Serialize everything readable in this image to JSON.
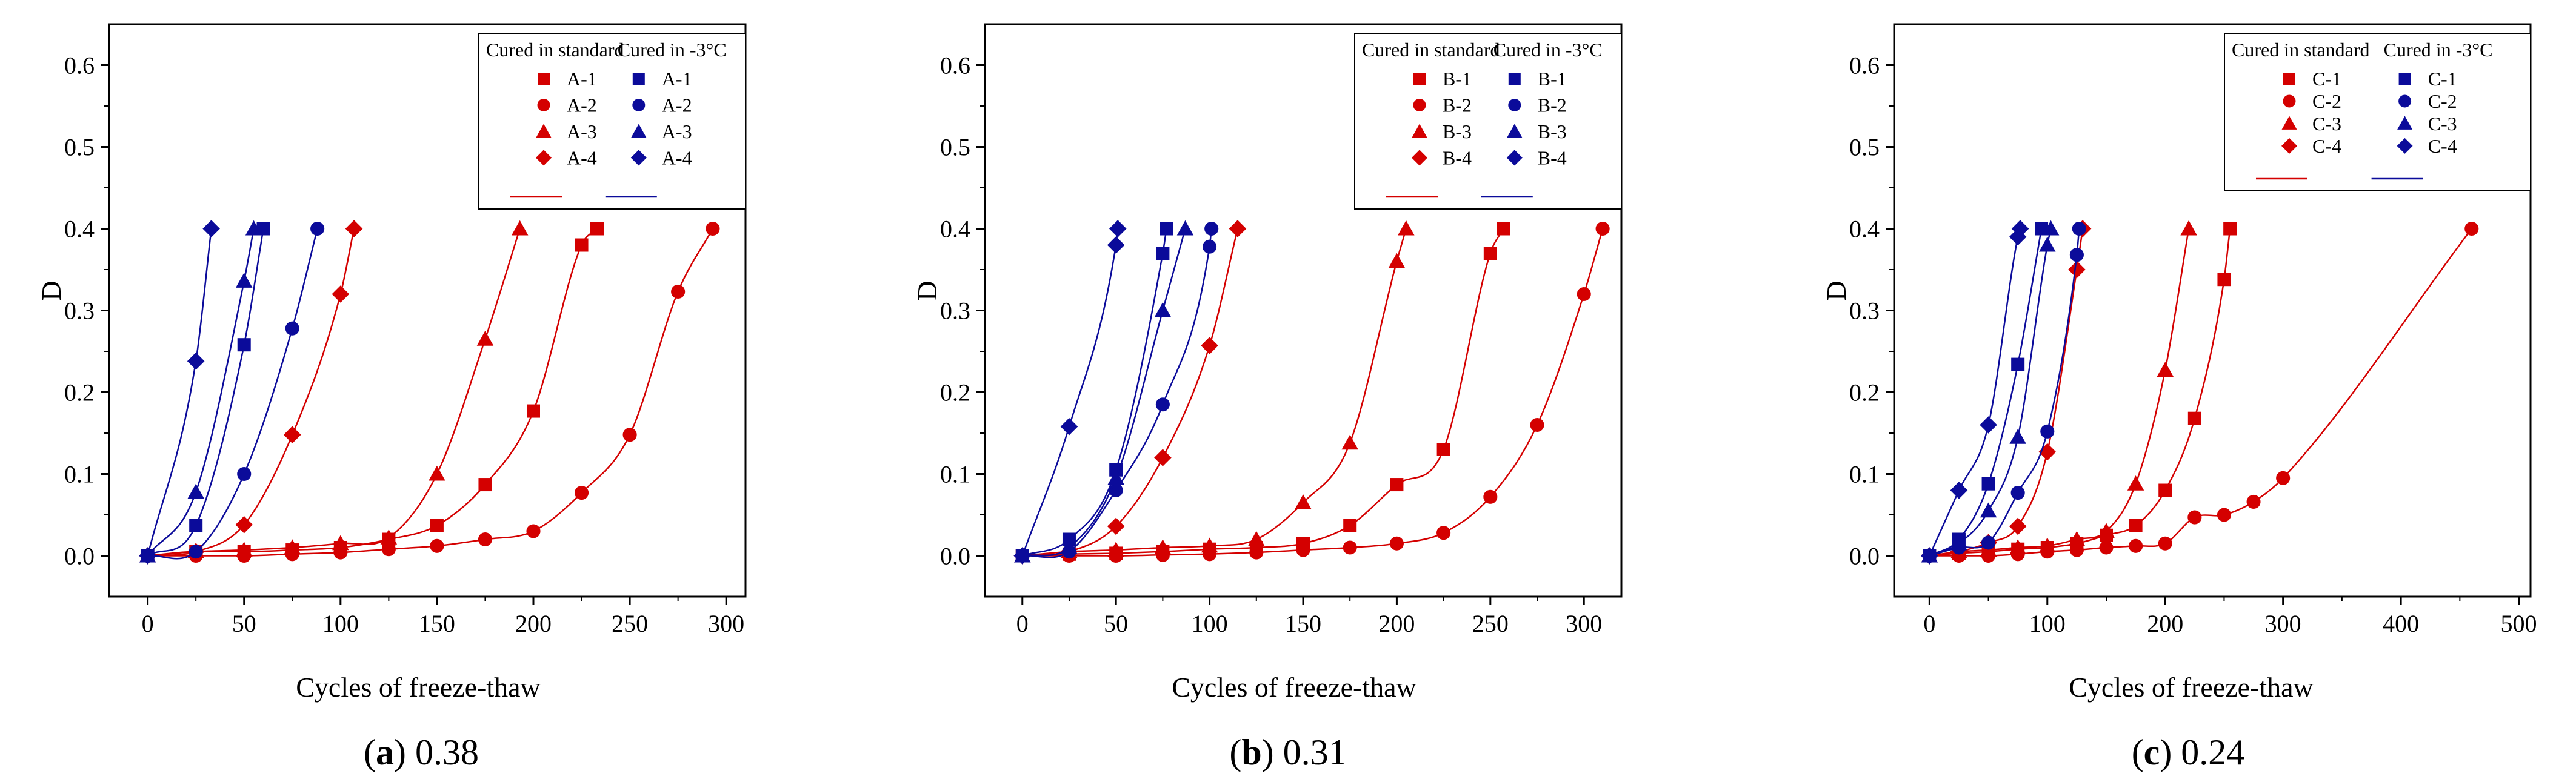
{
  "figure": {
    "colors": {
      "standard": "#d40000",
      "cold": "#0b0b9a",
      "axis": "#000000"
    }
  },
  "chart_data": [
    {
      "type": "scatter",
      "panel_letter": "a",
      "caption_value": "0.38",
      "xlabel": "Cycles of freeze-thaw",
      "ylabel": "D",
      "xlim": [
        -20,
        310
      ],
      "ylim": [
        -0.05,
        0.65
      ],
      "xticks": [
        0,
        50,
        100,
        150,
        200,
        250,
        300
      ],
      "xtick_labels": [
        "0",
        "50",
        "100",
        "150",
        "200",
        "250",
        "300"
      ],
      "yticks": [
        0.0,
        0.1,
        0.2,
        0.3,
        0.4,
        0.5,
        0.6
      ],
      "ytick_labels": [
        "0.0",
        "0.1",
        "0.2",
        "0.3",
        "0.4",
        "0.5",
        "0.6"
      ],
      "legend": {
        "position": "top-right",
        "standard_title": "Cured in standard",
        "cold_title": "Cured in -3°C"
      },
      "series": [
        {
          "name": "A-1",
          "group": "standard",
          "marker": "square",
          "points": [
            [
              0,
              0
            ],
            [
              25,
              0.005
            ],
            [
              50,
              0.005
            ],
            [
              75,
              0.007
            ],
            [
              100,
              0.01
            ],
            [
              125,
              0.02
            ],
            [
              150,
              0.037
            ],
            [
              175,
              0.087
            ],
            [
              200,
              0.177
            ],
            [
              225,
              0.38
            ],
            [
              233,
              0.4
            ]
          ],
          "fit_end": 233
        },
        {
          "name": "A-2",
          "group": "standard",
          "marker": "circle",
          "points": [
            [
              0,
              0
            ],
            [
              25,
              0
            ],
            [
              50,
              0
            ],
            [
              75,
              0.002
            ],
            [
              100,
              0.004
            ],
            [
              125,
              0.008
            ],
            [
              150,
              0.012
            ],
            [
              175,
              0.02
            ],
            [
              200,
              0.03
            ],
            [
              225,
              0.077
            ],
            [
              250,
              0.148
            ],
            [
              275,
              0.323
            ],
            [
              293,
              0.4
            ]
          ],
          "fit_end": 293
        },
        {
          "name": "A-3",
          "group": "standard",
          "marker": "triangle",
          "points": [
            [
              0,
              0
            ],
            [
              25,
              0.005
            ],
            [
              50,
              0.007
            ],
            [
              75,
              0.01
            ],
            [
              100,
              0.015
            ],
            [
              125,
              0.022
            ],
            [
              150,
              0.1
            ],
            [
              175,
              0.265
            ],
            [
              193,
              0.4
            ]
          ],
          "fit_end": 193
        },
        {
          "name": "A-4",
          "group": "standard",
          "marker": "diamond",
          "points": [
            [
              0,
              0
            ],
            [
              25,
              0.005
            ],
            [
              50,
              0.038
            ],
            [
              75,
              0.148
            ],
            [
              100,
              0.32
            ],
            [
              107,
              0.4
            ]
          ],
          "fit_end": 107
        },
        {
          "name": "A-1",
          "group": "cold",
          "marker": "square",
          "points": [
            [
              0,
              0
            ],
            [
              25,
              0.037
            ],
            [
              50,
              0.258
            ],
            [
              60,
              0.4
            ]
          ],
          "fit_end": 60
        },
        {
          "name": "A-2",
          "group": "cold",
          "marker": "circle",
          "points": [
            [
              0,
              0
            ],
            [
              25,
              0.005
            ],
            [
              50,
              0.1
            ],
            [
              75,
              0.278
            ],
            [
              88,
              0.4
            ]
          ],
          "fit_end": 88
        },
        {
          "name": "A-3",
          "group": "cold",
          "marker": "triangle",
          "points": [
            [
              0,
              0
            ],
            [
              25,
              0.078
            ],
            [
              50,
              0.336
            ],
            [
              55,
              0.4
            ]
          ],
          "fit_end": 55
        },
        {
          "name": "A-4",
          "group": "cold",
          "marker": "diamond",
          "points": [
            [
              0,
              0
            ],
            [
              25,
              0.238
            ],
            [
              33,
              0.4
            ]
          ],
          "fit_end": 33
        }
      ]
    },
    {
      "type": "scatter",
      "panel_letter": "b",
      "caption_value": "0.31",
      "xlabel": "Cycles of freeze-thaw",
      "ylabel": "D",
      "xlim": [
        -20,
        320
      ],
      "ylim": [
        -0.05,
        0.65
      ],
      "xticks": [
        0,
        50,
        100,
        150,
        200,
        250,
        300
      ],
      "xtick_labels": [
        "0",
        "50",
        "100",
        "150",
        "200",
        "250",
        "300"
      ],
      "yticks": [
        0.0,
        0.1,
        0.2,
        0.3,
        0.4,
        0.5,
        0.6
      ],
      "ytick_labels": [
        "0.0",
        "0.1",
        "0.2",
        "0.3",
        "0.4",
        "0.5",
        "0.6"
      ],
      "legend": {
        "position": "top-right",
        "standard_title": "Cured in standard",
        "cold_title": "Cured in -3°C"
      },
      "series": [
        {
          "name": "B-1",
          "group": "standard",
          "marker": "square",
          "points": [
            [
              0,
              0
            ],
            [
              25,
              0.002
            ],
            [
              50,
              0.003
            ],
            [
              75,
              0.005
            ],
            [
              100,
              0.008
            ],
            [
              125,
              0.01
            ],
            [
              150,
              0.015
            ],
            [
              175,
              0.037
            ],
            [
              200,
              0.087
            ],
            [
              225,
              0.13
            ],
            [
              250,
              0.37
            ],
            [
              257,
              0.4
            ]
          ],
          "fit_end": 257
        },
        {
          "name": "B-2",
          "group": "standard",
          "marker": "circle",
          "points": [
            [
              0,
              0
            ],
            [
              25,
              0
            ],
            [
              50,
              0
            ],
            [
              75,
              0.001
            ],
            [
              100,
              0.002
            ],
            [
              125,
              0.004
            ],
            [
              150,
              0.007
            ],
            [
              175,
              0.01
            ],
            [
              200,
              0.015
            ],
            [
              225,
              0.028
            ],
            [
              250,
              0.072
            ],
            [
              275,
              0.16
            ],
            [
              300,
              0.32
            ],
            [
              310,
              0.4
            ]
          ],
          "fit_end": 310
        },
        {
          "name": "B-3",
          "group": "standard",
          "marker": "triangle",
          "points": [
            [
              0,
              0
            ],
            [
              25,
              0.005
            ],
            [
              50,
              0.007
            ],
            [
              75,
              0.01
            ],
            [
              100,
              0.012
            ],
            [
              125,
              0.02
            ],
            [
              150,
              0.065
            ],
            [
              175,
              0.138
            ],
            [
              200,
              0.36
            ],
            [
              205,
              0.4
            ]
          ],
          "fit_end": 205
        },
        {
          "name": "B-4",
          "group": "standard",
          "marker": "diamond",
          "points": [
            [
              0,
              0
            ],
            [
              25,
              0.005
            ],
            [
              50,
              0.036
            ],
            [
              75,
              0.12
            ],
            [
              100,
              0.257
            ],
            [
              115,
              0.4
            ]
          ],
          "fit_end": 115
        },
        {
          "name": "B-1",
          "group": "cold",
          "marker": "square",
          "points": [
            [
              0,
              0
            ],
            [
              25,
              0.02
            ],
            [
              50,
              0.105
            ],
            [
              75,
              0.37
            ],
            [
              77,
              0.4
            ]
          ],
          "fit_end": 77
        },
        {
          "name": "B-2",
          "group": "cold",
          "marker": "circle",
          "points": [
            [
              0,
              0
            ],
            [
              25,
              0.005
            ],
            [
              50,
              0.08
            ],
            [
              75,
              0.185
            ],
            [
              100,
              0.378
            ],
            [
              101,
              0.4
            ]
          ],
          "fit_end": 101
        },
        {
          "name": "B-3",
          "group": "cold",
          "marker": "triangle",
          "points": [
            [
              0,
              0
            ],
            [
              25,
              0.01
            ],
            [
              50,
              0.095
            ],
            [
              75,
              0.3
            ],
            [
              87,
              0.4
            ]
          ],
          "fit_end": 87
        },
        {
          "name": "B-4",
          "group": "cold",
          "marker": "diamond",
          "points": [
            [
              0,
              0
            ],
            [
              25,
              0.158
            ],
            [
              50,
              0.38
            ],
            [
              51,
              0.4
            ]
          ],
          "fit_end": 51
        }
      ]
    },
    {
      "type": "scatter",
      "panel_letter": "c",
      "caption_value": "0.24",
      "xlabel": "Cycles of freeze-thaw",
      "ylabel": "D",
      "xlim": [
        -30,
        510
      ],
      "ylim": [
        -0.05,
        0.65
      ],
      "xticks": [
        0,
        100,
        200,
        300,
        400,
        500
      ],
      "xtick_labels": [
        "0",
        "100",
        "200",
        "300",
        "400",
        "500"
      ],
      "yticks": [
        0.0,
        0.1,
        0.2,
        0.3,
        0.4,
        0.5,
        0.6
      ],
      "ytick_labels": [
        "0.0",
        "0.1",
        "0.2",
        "0.3",
        "0.4",
        "0.5",
        "0.6"
      ],
      "legend": {
        "position": "top-right",
        "standard_title": "Cured in standard",
        "cold_title": "Cured in -3°C"
      },
      "series": [
        {
          "name": "C-1",
          "group": "standard",
          "marker": "square",
          "points": [
            [
              0,
              0
            ],
            [
              25,
              0.003
            ],
            [
              50,
              0.005
            ],
            [
              75,
              0.008
            ],
            [
              100,
              0.01
            ],
            [
              125,
              0.015
            ],
            [
              150,
              0.025
            ],
            [
              175,
              0.037
            ],
            [
              200,
              0.08
            ],
            [
              225,
              0.168
            ],
            [
              250,
              0.338
            ],
            [
              255,
              0.4
            ]
          ],
          "fit_end": 255
        },
        {
          "name": "C-2",
          "group": "standard",
          "marker": "circle",
          "points": [
            [
              0,
              0
            ],
            [
              25,
              0
            ],
            [
              50,
              0
            ],
            [
              75,
              0.002
            ],
            [
              100,
              0.005
            ],
            [
              125,
              0.007
            ],
            [
              150,
              0.01
            ],
            [
              175,
              0.012
            ],
            [
              200,
              0.015
            ],
            [
              225,
              0.047
            ],
            [
              250,
              0.05
            ],
            [
              275,
              0.066
            ],
            [
              300,
              0.095
            ],
            [
              460,
              0.4
            ]
          ],
          "fit_end": 460
        },
        {
          "name": "C-3",
          "group": "standard",
          "marker": "triangle",
          "points": [
            [
              0,
              0
            ],
            [
              25,
              0.005
            ],
            [
              50,
              0.007
            ],
            [
              75,
              0.01
            ],
            [
              100,
              0.012
            ],
            [
              125,
              0.02
            ],
            [
              150,
              0.03
            ],
            [
              175,
              0.088
            ],
            [
              200,
              0.227
            ],
            [
              220,
              0.4
            ]
          ],
          "fit_end": 220
        },
        {
          "name": "C-4",
          "group": "standard",
          "marker": "diamond",
          "points": [
            [
              0,
              0
            ],
            [
              25,
              0.005
            ],
            [
              50,
              0.016
            ],
            [
              75,
              0.036
            ],
            [
              100,
              0.127
            ],
            [
              125,
              0.35
            ],
            [
              130,
              0.4
            ]
          ],
          "fit_end": 130
        },
        {
          "name": "C-1",
          "group": "cold",
          "marker": "square",
          "points": [
            [
              0,
              0
            ],
            [
              25,
              0.02
            ],
            [
              50,
              0.088
            ],
            [
              75,
              0.234
            ],
            [
              95,
              0.4
            ]
          ],
          "fit_end": 95
        },
        {
          "name": "C-2",
          "group": "cold",
          "marker": "circle",
          "points": [
            [
              0,
              0
            ],
            [
              25,
              0.01
            ],
            [
              50,
              0.016
            ],
            [
              75,
              0.077
            ],
            [
              100,
              0.152
            ],
            [
              125,
              0.368
            ],
            [
              127,
              0.4
            ]
          ],
          "fit_end": 127
        },
        {
          "name": "C-3",
          "group": "cold",
          "marker": "triangle",
          "points": [
            [
              0,
              0
            ],
            [
              25,
              0.015
            ],
            [
              50,
              0.055
            ],
            [
              75,
              0.145
            ],
            [
              100,
              0.38
            ],
            [
              103,
              0.4
            ]
          ],
          "fit_end": 103
        },
        {
          "name": "C-4",
          "group": "cold",
          "marker": "diamond",
          "points": [
            [
              0,
              0
            ],
            [
              25,
              0.08
            ],
            [
              50,
              0.16
            ],
            [
              75,
              0.39
            ],
            [
              77,
              0.4
            ]
          ],
          "fit_end": 77
        }
      ]
    }
  ]
}
